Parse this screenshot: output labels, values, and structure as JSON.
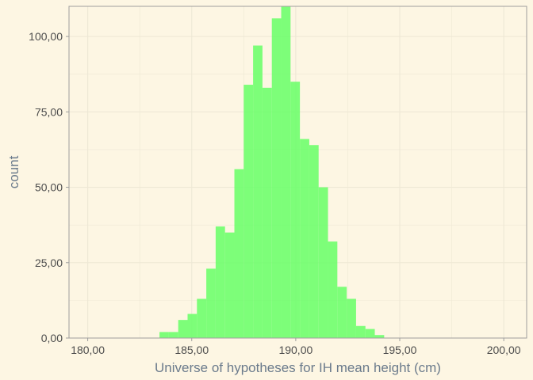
{
  "chart_data": {
    "type": "bar",
    "title": "",
    "xlabel": "Universe of hypotheses for IH mean height (cm)",
    "ylabel": "count",
    "xlim": [
      179.1,
      201.1
    ],
    "ylim": [
      0,
      110
    ],
    "x_ticks": [
      180,
      185,
      190,
      195,
      200
    ],
    "x_tick_labels": [
      "180,00",
      "185,00",
      "190,00",
      "195,00",
      "200,00"
    ],
    "y_ticks": [
      0,
      25,
      50,
      75,
      100
    ],
    "y_tick_labels": [
      "0,00",
      "25,00",
      "50,00",
      "75,00",
      "100,00"
    ],
    "bin_width": 0.45,
    "bin_starts": [
      183.45,
      183.9,
      184.35,
      184.8,
      185.25,
      185.7,
      186.15,
      186.6,
      187.05,
      187.5,
      187.95,
      188.4,
      188.85,
      189.3,
      189.75,
      190.2,
      190.65,
      191.1,
      191.55,
      192.0,
      192.45,
      192.9,
      193.35,
      193.8
    ],
    "counts": [
      2,
      2,
      6,
      8,
      13,
      23,
      37,
      35,
      56,
      84,
      97,
      83,
      106,
      110,
      85,
      66,
      64,
      50,
      32,
      17,
      13,
      4,
      3,
      1
    ],
    "bar_color": "#66FF66",
    "bar_opacity": 0.85,
    "background": "#FDF6E3",
    "grid": true,
    "grid_color": "#EEE8D5",
    "legend": "none"
  }
}
